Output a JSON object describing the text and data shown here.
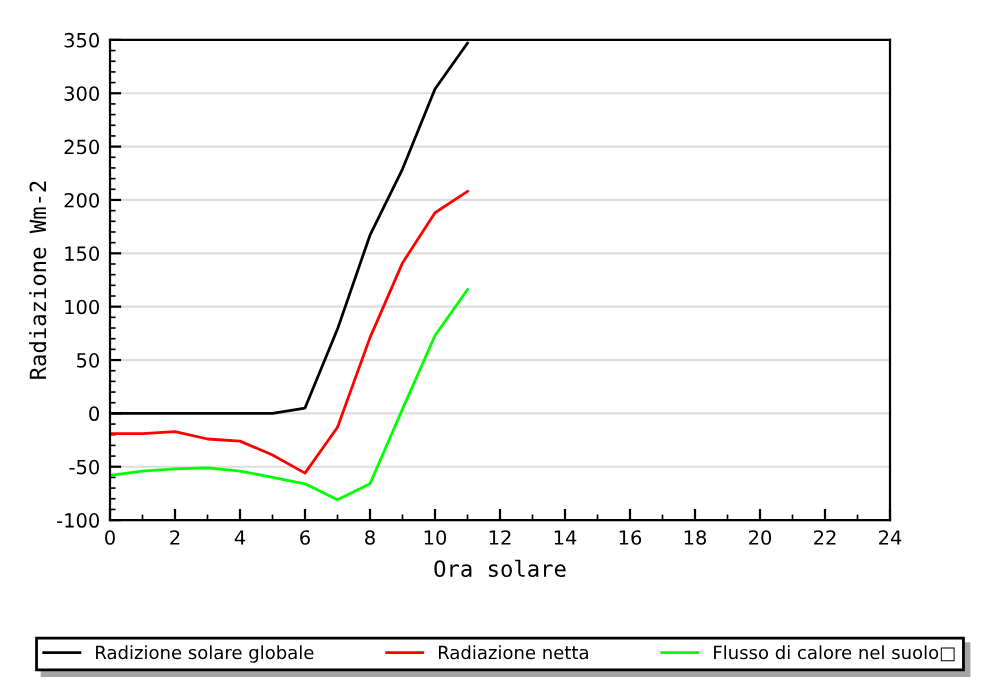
{
  "chart_data": {
    "type": "line",
    "xlabel": "Ora solare",
    "ylabel": "Radiazione Wm-2",
    "x": [
      0,
      1,
      2,
      3,
      4,
      5,
      6,
      7,
      8,
      9,
      10,
      11
    ],
    "series": [
      {
        "name": "Radizione solare globale",
        "color": "#000000",
        "values": [
          0,
          0,
          0,
          0,
          0,
          0,
          5,
          79,
          167,
          229,
          304,
          347
        ]
      },
      {
        "name": "Radiazione netta",
        "color": "#ff0000",
        "values": [
          -19,
          -19,
          -17,
          -24,
          -26,
          -39,
          -56,
          -13,
          71,
          141,
          188,
          208
        ]
      },
      {
        "name": "Flusso di calore nel suolo□",
        "color": "#00ff00",
        "values": [
          -58,
          -54,
          -52,
          -51,
          -54,
          -60,
          -66,
          -81,
          -66,
          4,
          73,
          116
        ]
      }
    ],
    "xlim": [
      0,
      24
    ],
    "xticks": [
      0,
      2,
      4,
      6,
      8,
      10,
      12,
      14,
      16,
      18,
      20,
      22,
      24
    ],
    "ylim": [
      -100,
      350
    ],
    "yticks": [
      -100,
      -50,
      0,
      50,
      100,
      150,
      200,
      250,
      300,
      350
    ],
    "grid": "y",
    "legend": "bottom",
    "marker": "none",
    "line_style": "solid"
  }
}
